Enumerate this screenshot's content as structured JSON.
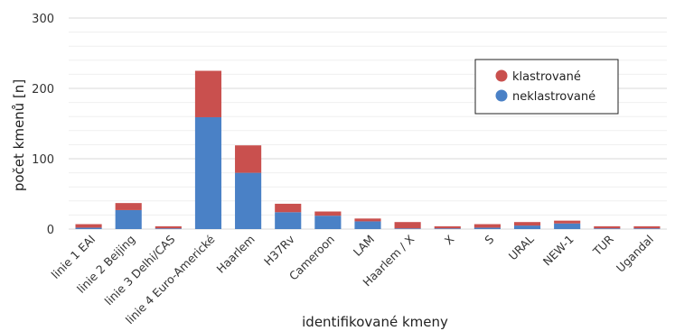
{
  "chart_data": {
    "type": "bar",
    "stacked": true,
    "xlabel": "identifikované kmeny",
    "ylabel": "počet kmenů [n]",
    "ylim": [
      0,
      300
    ],
    "yticks": [
      0,
      100,
      200,
      300
    ],
    "grid": true,
    "legend_position": "top-right",
    "categories": [
      "linie 1 EAI",
      "linie 2 Beijing",
      "linie 3 Delhi/CAS",
      "linie 4 Euro-Americké",
      "Haarlem",
      "H37Rv",
      "Cameroon",
      "LAM",
      "Haarlem / X",
      "X",
      "S",
      "URAL",
      "NEW-1",
      "TUR",
      "Ugandal"
    ],
    "series": [
      {
        "name": "neklastrované",
        "color": "#4a81c6",
        "values": [
          2,
          27,
          1,
          159,
          80,
          24,
          19,
          11,
          1,
          1,
          2,
          5,
          8,
          1,
          1
        ]
      },
      {
        "name": "klastrované",
        "color": "#c9504e",
        "values": [
          5,
          10,
          3,
          66,
          39,
          12,
          6,
          4,
          9,
          3,
          5,
          5,
          4,
          3,
          3
        ]
      }
    ]
  }
}
